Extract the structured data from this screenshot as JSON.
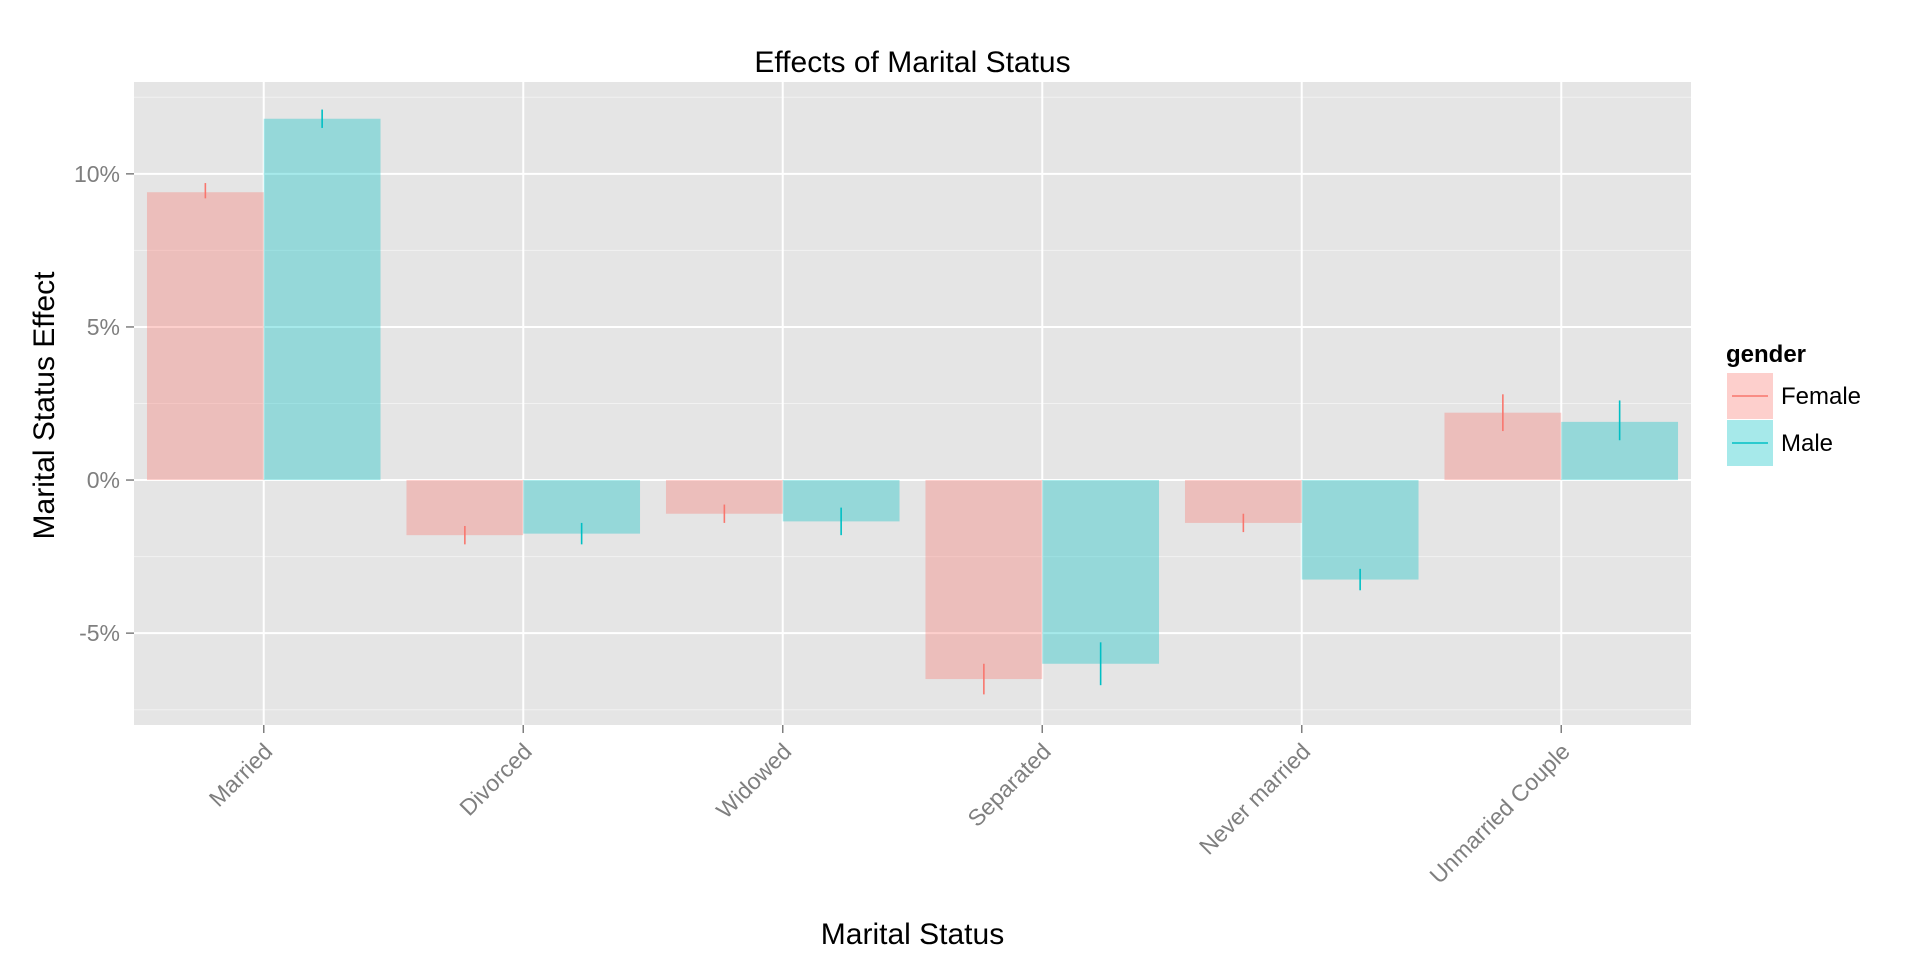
{
  "chart_data": {
    "type": "bar",
    "title": "Effects of Marital Status",
    "xlabel": "Marital Status",
    "ylabel": "Marital Status Effect",
    "categories": [
      "Married",
      "Divorced",
      "Widowed",
      "Separated",
      "Never married",
      "Unmarried Couple"
    ],
    "series": [
      {
        "name": "Female",
        "color": "#F8766D",
        "values": [
          9.4,
          -1.8,
          -1.1,
          -6.5,
          -1.4,
          2.2
        ],
        "error_low": [
          9.2,
          -2.1,
          -1.4,
          -7.0,
          -1.7,
          1.6
        ],
        "error_high": [
          9.7,
          -1.5,
          -0.8,
          -6.0,
          -1.1,
          2.8
        ]
      },
      {
        "name": "Male",
        "color": "#00BFC4",
        "values": [
          11.8,
          -1.75,
          -1.35,
          -6.0,
          -3.25,
          1.9
        ],
        "error_low": [
          11.5,
          -2.1,
          -1.8,
          -6.7,
          -3.6,
          1.3
        ],
        "error_high": [
          12.1,
          -1.4,
          -0.9,
          -5.3,
          -2.9,
          2.6
        ]
      }
    ],
    "ylim": [
      -8,
      13
    ],
    "yticks": [
      -5,
      0,
      5,
      10
    ],
    "ytick_labels": [
      "-5%",
      "0%",
      "5%",
      "10%"
    ],
    "grid": true,
    "legend": {
      "title": "gender",
      "position": "right"
    }
  }
}
